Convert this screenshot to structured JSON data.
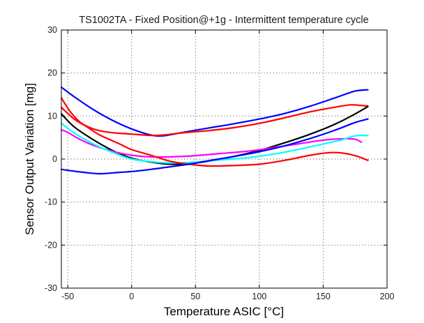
{
  "chart_data": {
    "type": "line",
    "title": "TS1002TA - Fixed Position@+1g - Intermittent temperature cycle",
    "xlabel": "Temperature ASIC [°C]",
    "ylabel": "Sensor Output Variation [mg]",
    "xlim": [
      -55,
      200
    ],
    "ylim": [
      -30,
      30
    ],
    "xticks": [
      -50,
      0,
      50,
      100,
      150,
      200
    ],
    "yticks": [
      -30,
      -20,
      -10,
      0,
      10,
      20,
      30
    ],
    "grid": true,
    "legend": "none",
    "series": [
      {
        "color": "#0000ff",
        "points": [
          [
            -55,
            16.7
          ],
          [
            -45,
            14.5
          ],
          [
            -30,
            11.5
          ],
          [
            -15,
            9
          ],
          [
            0,
            7
          ],
          [
            15,
            5.6
          ],
          [
            25,
            5.4
          ],
          [
            40,
            6.2
          ],
          [
            60,
            7.2
          ],
          [
            80,
            8.2
          ],
          [
            100,
            9.3
          ],
          [
            120,
            10.6
          ],
          [
            140,
            12.3
          ],
          [
            160,
            14.3
          ],
          [
            175,
            15.8
          ],
          [
            185,
            16.1
          ]
        ]
      },
      {
        "color": "#ff0000",
        "points": [
          [
            -55,
            14.2
          ],
          [
            -48,
            11
          ],
          [
            -40,
            8.5
          ],
          [
            -30,
            7
          ],
          [
            -20,
            6.3
          ],
          [
            -10,
            6
          ],
          [
            0,
            5.8
          ],
          [
            15,
            5.5
          ],
          [
            25,
            5.6
          ],
          [
            40,
            6.1
          ],
          [
            60,
            6.6
          ],
          [
            80,
            7.3
          ],
          [
            100,
            8.3
          ],
          [
            120,
            9.6
          ],
          [
            140,
            11
          ],
          [
            160,
            12.1
          ],
          [
            172,
            12.6
          ],
          [
            185,
            12.3
          ]
        ]
      },
      {
        "color": "#000000",
        "points": [
          [
            -55,
            10.5
          ],
          [
            -45,
            7.5
          ],
          [
            -30,
            4.5
          ],
          [
            -15,
            2
          ],
          [
            0,
            0.2
          ],
          [
            15,
            -0.7
          ],
          [
            30,
            -1.2
          ],
          [
            45,
            -1.1
          ],
          [
            60,
            -0.5
          ],
          [
            80,
            0.6
          ],
          [
            100,
            2
          ],
          [
            120,
            3.8
          ],
          [
            140,
            5.8
          ],
          [
            160,
            8.2
          ],
          [
            175,
            10.5
          ],
          [
            185,
            12.2
          ]
        ]
      },
      {
        "color": "#ff00ff",
        "points": [
          [
            -55,
            6.8
          ],
          [
            -50,
            6.2
          ],
          [
            -40,
            4.5
          ],
          [
            -30,
            3.2
          ],
          [
            -15,
            1.8
          ],
          [
            0,
            0.9
          ],
          [
            15,
            0.5
          ],
          [
            30,
            0.5
          ],
          [
            50,
            0.8
          ],
          [
            70,
            1.3
          ],
          [
            90,
            1.8
          ],
          [
            110,
            2.6
          ],
          [
            130,
            3.5
          ],
          [
            150,
            4.4
          ],
          [
            165,
            4.7
          ],
          [
            175,
            4.6
          ],
          [
            180,
            3.9
          ]
        ]
      },
      {
        "color": "#00ffff",
        "points": [
          [
            -55,
            8.3
          ],
          [
            -48,
            6.7
          ],
          [
            -38,
            4.8
          ],
          [
            -25,
            2.8
          ],
          [
            -10,
            1
          ],
          [
            0,
            0
          ],
          [
            15,
            -0.6
          ],
          [
            30,
            -0.9
          ],
          [
            50,
            -0.7
          ],
          [
            70,
            -0.2
          ],
          [
            90,
            0.3
          ],
          [
            110,
            1.1
          ],
          [
            130,
            2.2
          ],
          [
            150,
            3.5
          ],
          [
            165,
            4.5
          ],
          [
            175,
            5.4
          ],
          [
            185,
            5.5
          ]
        ]
      },
      {
        "color": "#ff0000",
        "points": [
          [
            -55,
            12
          ],
          [
            -45,
            9.3
          ],
          [
            -35,
            7.5
          ],
          [
            -25,
            5.6
          ],
          [
            -10,
            3.6
          ],
          [
            0,
            2.2
          ],
          [
            15,
            0.9
          ],
          [
            30,
            -0.5
          ],
          [
            45,
            -1.2
          ],
          [
            60,
            -1.6
          ],
          [
            80,
            -1.5
          ],
          [
            100,
            -1.2
          ],
          [
            120,
            -0.3
          ],
          [
            140,
            0.9
          ],
          [
            155,
            1.5
          ],
          [
            165,
            1.4
          ],
          [
            175,
            0.8
          ],
          [
            185,
            -0.3
          ]
        ]
      },
      {
        "color": "#0000ff",
        "points": [
          [
            -55,
            -2.4
          ],
          [
            -40,
            -3
          ],
          [
            -25,
            -3.4
          ],
          [
            -10,
            -3.1
          ],
          [
            0,
            -2.9
          ],
          [
            15,
            -2.4
          ],
          [
            30,
            -1.8
          ],
          [
            45,
            -1.2
          ],
          [
            60,
            -0.4
          ],
          [
            80,
            0.6
          ],
          [
            100,
            1.7
          ],
          [
            120,
            3.1
          ],
          [
            140,
            4.8
          ],
          [
            160,
            6.8
          ],
          [
            175,
            8.5
          ],
          [
            185,
            9.3
          ]
        ]
      }
    ]
  }
}
